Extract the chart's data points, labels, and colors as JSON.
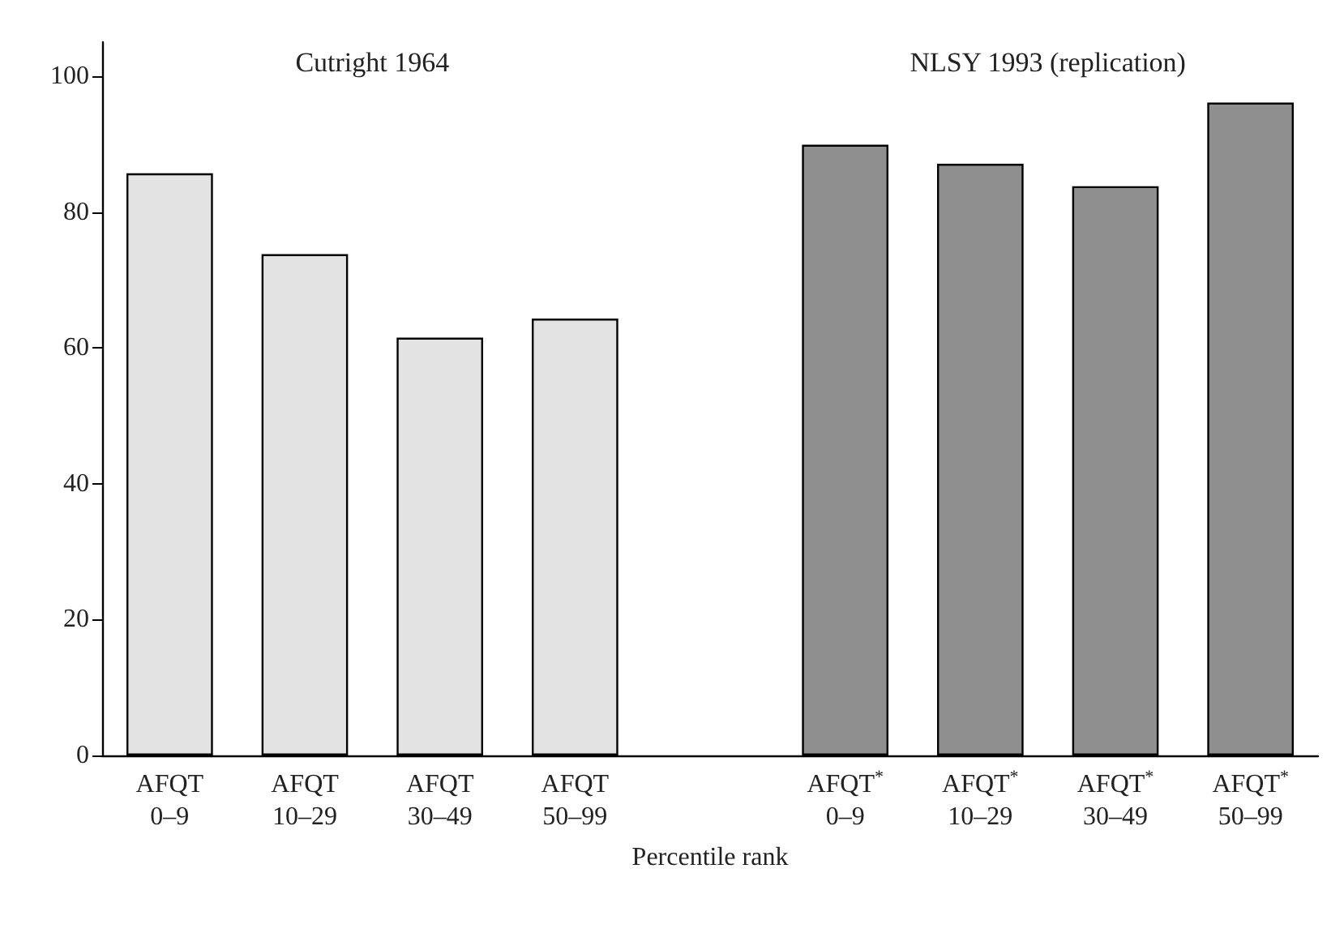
{
  "chart_data": {
    "type": "bar",
    "xlabel": "Percentile rank",
    "categories": [
      "AFQT\n0–9",
      "AFQT\n10–29",
      "AFQT\n30–49",
      "AFQT\n50–99",
      null,
      "AFQT$^{*}$\n0–9",
      "AFQT$^{*}$\n10–29",
      "AFQT$^{*}$\n30–49",
      "AFQT$^{*}$\n50–99"
    ],
    "annotations": [
      "Cutright 1964",
      "NLSY 1993 (replication)"
    ],
    "series": [
      {
        "color": "#e3e3e3",
        "values": [
          85.7,
          73.8,
          61.5,
          64.3,
          null,
          null,
          null,
          null,
          null
        ]
      },
      {
        "color": "#8f8f8f",
        "values": [
          null,
          null,
          null,
          null,
          null,
          89.9,
          87.1,
          83.8,
          96.1
        ]
      }
    ],
    "ylim": [
      0,
      105
    ],
    "yticks": [
      0,
      20,
      40,
      60,
      80,
      100
    ],
    "grid": false
  }
}
